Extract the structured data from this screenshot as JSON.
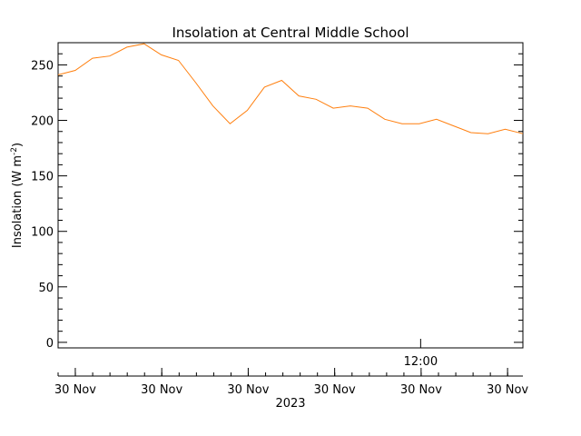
{
  "chart_data": {
    "type": "line",
    "title": "Insolation at Central Middle School",
    "ylabel_main": "Insolation (W m",
    "ylabel_sup": "-2",
    "ylabel_close": ")",
    "ylim": [
      -5,
      270
    ],
    "yticks": [
      0,
      50,
      100,
      150,
      200,
      250
    ],
    "y_minor_step": 10,
    "xlim": [
      0,
      100
    ],
    "x_upper_tick_label": "12:00",
    "x_upper_tick_at": 78,
    "x_lower_tick_labels": [
      "30 Nov",
      "30 Nov",
      "30 Nov",
      "30 Nov",
      "30 Nov",
      "30 Nov"
    ],
    "x_lower_tick_at": [
      3.7,
      22.3,
      40.9,
      59.5,
      78.1,
      96.7
    ],
    "x_minor_tick_step": 3.72,
    "x_axis_year": "2023",
    "grid": false,
    "series": [
      {
        "color": "#ff7f0e",
        "x": [
          0,
          3.7,
          7.4,
          11.1,
          14.8,
          18.5,
          22.2,
          25.9,
          29.6,
          33.3,
          37.0,
          40.7,
          44.4,
          48.1,
          51.8,
          55.5,
          59.2,
          62.9,
          66.6,
          70.3,
          74.0,
          77.7,
          81.4,
          85.1,
          88.8,
          92.5,
          96.2,
          100
        ],
        "y": [
          241,
          245,
          256,
          258,
          266,
          269,
          259,
          254,
          234,
          213,
          197,
          209,
          230,
          236,
          222,
          219,
          211,
          213,
          211,
          201,
          197,
          197,
          201,
          195,
          189,
          188,
          192,
          188
        ]
      }
    ]
  }
}
